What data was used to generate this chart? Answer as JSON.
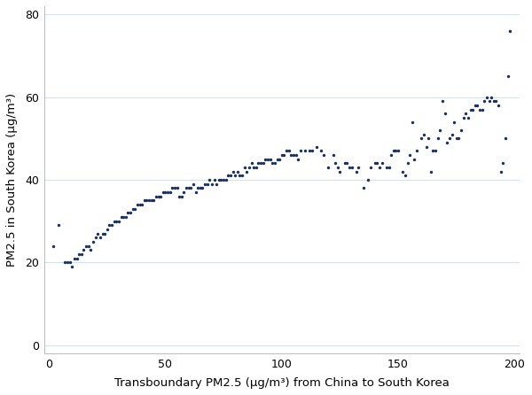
{
  "x": [
    2,
    4,
    7,
    8,
    9,
    10,
    11,
    12,
    13,
    14,
    15,
    16,
    17,
    18,
    19,
    20,
    21,
    22,
    23,
    24,
    25,
    26,
    27,
    28,
    29,
    30,
    31,
    32,
    33,
    34,
    35,
    36,
    37,
    38,
    39,
    40,
    41,
    42,
    43,
    44,
    45,
    46,
    47,
    48,
    49,
    50,
    51,
    52,
    53,
    54,
    55,
    56,
    57,
    58,
    59,
    60,
    61,
    62,
    63,
    64,
    65,
    66,
    67,
    68,
    69,
    70,
    71,
    72,
    73,
    74,
    75,
    76,
    77,
    78,
    79,
    80,
    81,
    82,
    83,
    84,
    85,
    86,
    87,
    88,
    89,
    90,
    91,
    92,
    93,
    94,
    95,
    96,
    97,
    98,
    99,
    100,
    101,
    102,
    103,
    104,
    105,
    106,
    107,
    108,
    110,
    112,
    113,
    115,
    117,
    118,
    120,
    122,
    123,
    124,
    125,
    127,
    128,
    129,
    130,
    132,
    133,
    135,
    137,
    138,
    140,
    141,
    142,
    143,
    145,
    146,
    147,
    148,
    149,
    150,
    152,
    153,
    154,
    155,
    156,
    157,
    158,
    160,
    161,
    162,
    163,
    164,
    165,
    166,
    167,
    168,
    169,
    170,
    171,
    172,
    173,
    174,
    175,
    176,
    177,
    178,
    179,
    180,
    181,
    182,
    183,
    184,
    185,
    186,
    187,
    188,
    189,
    190,
    191,
    192,
    193,
    194,
    195,
    196,
    197,
    198
  ],
  "y": [
    24,
    29,
    20,
    20,
    20,
    19,
    21,
    21,
    22,
    22,
    23,
    24,
    24,
    23,
    25,
    26,
    27,
    26,
    27,
    27,
    28,
    29,
    29,
    30,
    30,
    30,
    31,
    31,
    31,
    32,
    32,
    33,
    33,
    34,
    34,
    34,
    35,
    35,
    35,
    35,
    35,
    36,
    36,
    36,
    37,
    37,
    37,
    37,
    38,
    38,
    38,
    36,
    36,
    37,
    38,
    38,
    38,
    39,
    37,
    38,
    38,
    38,
    39,
    39,
    40,
    39,
    40,
    39,
    40,
    40,
    40,
    40,
    41,
    41,
    42,
    41,
    42,
    41,
    41,
    43,
    42,
    43,
    44,
    43,
    43,
    44,
    44,
    44,
    45,
    45,
    45,
    44,
    44,
    45,
    45,
    46,
    46,
    47,
    47,
    46,
    46,
    46,
    45,
    47,
    47,
    47,
    47,
    48,
    47,
    46,
    43,
    46,
    44,
    43,
    42,
    44,
    44,
    43,
    43,
    42,
    43,
    38,
    40,
    43,
    44,
    44,
    43,
    44,
    43,
    43,
    46,
    47,
    47,
    47,
    42,
    41,
    44,
    46,
    54,
    45,
    47,
    50,
    51,
    48,
    50,
    42,
    47,
    47,
    50,
    52,
    59,
    56,
    49,
    50,
    51,
    54,
    50,
    50,
    52,
    55,
    56,
    55,
    57,
    57,
    58,
    58,
    57,
    57,
    59,
    60,
    59,
    60,
    59,
    59,
    58,
    42,
    44,
    50,
    65,
    76
  ],
  "dot_color": "#1a3060",
  "dot_size": 6,
  "xlabel": "Transboundary PM2.5 (μg/m³) from China to South Korea",
  "ylabel": "PM2.5 in South Korea (μg/m³)",
  "xlim": [
    -2,
    202
  ],
  "ylim": [
    -2,
    82
  ],
  "xticks": [
    0,
    50,
    100,
    150,
    200
  ],
  "yticks": [
    0,
    20,
    40,
    60,
    80
  ],
  "grid_color": "#cce5f0",
  "grid_linewidth": 0.7,
  "bg_color": "#ffffff",
  "tick_fontsize": 9,
  "label_fontsize": 9.5
}
